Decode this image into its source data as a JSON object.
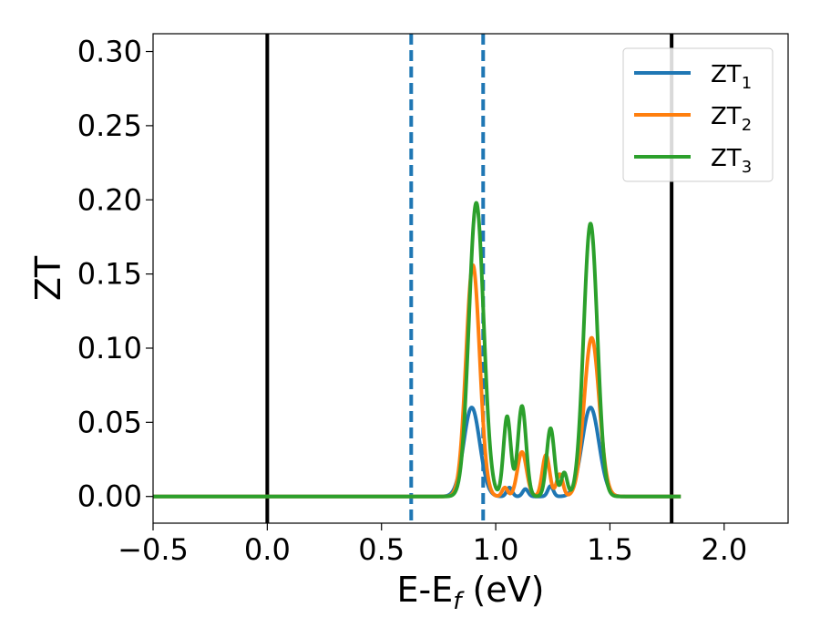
{
  "chart_data": {
    "type": "line",
    "xlabel": "E-E",
    "xlabel_sub": "f",
    "xlabel_unit": " (eV)",
    "ylabel": "ZT",
    "xlim": [
      -0.5,
      2.28
    ],
    "ylim": [
      -0.018,
      0.312
    ],
    "xticks": [
      -0.5,
      0.0,
      0.5,
      1.0,
      1.5,
      2.0
    ],
    "xtick_labels": [
      "−0.5",
      "0.0",
      "0.5",
      "1.0",
      "1.5",
      "2.0"
    ],
    "yticks": [
      0.0,
      0.05,
      0.1,
      0.15,
      0.2,
      0.25,
      0.3
    ],
    "ytick_labels": [
      "0.00",
      "0.05",
      "0.10",
      "0.15",
      "0.20",
      "0.25",
      "0.30"
    ],
    "grid": false,
    "legend_position": "top-right",
    "vlines": [
      {
        "x": 0.0,
        "style": "solid",
        "color": "#000000"
      },
      {
        "x": 1.77,
        "style": "solid",
        "color": "#000000"
      },
      {
        "x": 0.63,
        "style": "dashed",
        "color": "#1f77b4"
      },
      {
        "x": 0.945,
        "style": "dashed",
        "color": "#1f77b4"
      }
    ],
    "x_range_data": [
      -0.5,
      1.81
    ],
    "series": [
      {
        "name": "ZT",
        "name_sub": "1",
        "color": "#1f77b4",
        "peaks": [
          {
            "center": 0.895,
            "height": 0.06,
            "width": 0.035
          },
          {
            "center": 1.06,
            "height": 0.006,
            "width": 0.012
          },
          {
            "center": 1.13,
            "height": 0.005,
            "width": 0.012
          },
          {
            "center": 1.24,
            "height": 0.007,
            "width": 0.012
          },
          {
            "center": 1.415,
            "height": 0.06,
            "width": 0.037
          }
        ]
      },
      {
        "name": "ZT",
        "name_sub": "2",
        "color": "#ff7f0e",
        "peaks": [
          {
            "center": 0.9,
            "height": 0.156,
            "width": 0.03
          },
          {
            "center": 1.04,
            "height": 0.006,
            "width": 0.012
          },
          {
            "center": 1.115,
            "height": 0.03,
            "width": 0.02
          },
          {
            "center": 1.22,
            "height": 0.028,
            "width": 0.016
          },
          {
            "center": 1.28,
            "height": 0.015,
            "width": 0.014
          },
          {
            "center": 1.42,
            "height": 0.107,
            "width": 0.033
          }
        ]
      },
      {
        "name": "ZT",
        "name_sub": "3",
        "color": "#2ca02c",
        "peaks": [
          {
            "center": 0.915,
            "height": 0.198,
            "width": 0.032
          },
          {
            "center": 1.05,
            "height": 0.054,
            "width": 0.016
          },
          {
            "center": 1.115,
            "height": 0.061,
            "width": 0.018
          },
          {
            "center": 1.24,
            "height": 0.046,
            "width": 0.017
          },
          {
            "center": 1.3,
            "height": 0.016,
            "width": 0.013
          },
          {
            "center": 1.415,
            "height": 0.184,
            "width": 0.03
          }
        ]
      }
    ]
  }
}
